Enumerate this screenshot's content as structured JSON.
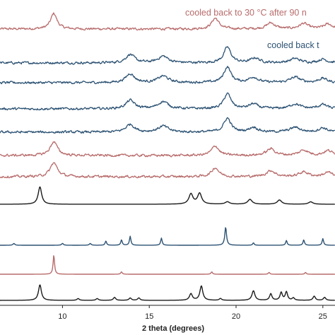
{
  "chart_data": {
    "type": "line",
    "title": "",
    "xlabel": "2 theta (degrees)",
    "ylabel": "",
    "xlim": [
      6.4,
      25.7
    ],
    "xticks": [
      10,
      15,
      20,
      25
    ],
    "xtick_labels": [
      "10",
      "15",
      "20",
      "25"
    ],
    "grid": false,
    "legend": "none",
    "annotations": [
      {
        "text": "cooled back to 30 °C after 90 n",
        "color": "#b86b6b",
        "series_index": 0
      },
      {
        "text": "cooled back t",
        "color": "#2c5273",
        "series_index": 1
      }
    ],
    "series": [
      {
        "color": "#b86b6b",
        "baseline": 0.0,
        "noise": 0.32,
        "peaks": [
          [
            9.5,
            2.6,
            0.22
          ],
          [
            18.8,
            1.8,
            0.25
          ],
          [
            22.0,
            1.0,
            0.3
          ],
          [
            23.9,
            0.9,
            0.3
          ],
          [
            25.3,
            0.8,
            0.3
          ]
        ]
      },
      {
        "color": "#2c5273",
        "baseline": 0.0,
        "noise": 0.32,
        "peaks": [
          [
            13.9,
            1.4,
            0.3
          ],
          [
            15.8,
            1.1,
            0.35
          ],
          [
            19.5,
            2.6,
            0.25
          ],
          [
            21.1,
            0.8,
            0.3
          ],
          [
            23.4,
            0.7,
            0.35
          ],
          [
            25.0,
            0.6,
            0.3
          ]
        ]
      },
      {
        "color": "#2c5273",
        "baseline": 0.0,
        "noise": 0.32,
        "peaks": [
          [
            13.9,
            1.5,
            0.3
          ],
          [
            15.8,
            1.1,
            0.35
          ],
          [
            19.5,
            2.6,
            0.25
          ],
          [
            21.0,
            0.9,
            0.3
          ],
          [
            23.4,
            0.9,
            0.35
          ],
          [
            25.0,
            0.7,
            0.3
          ]
        ]
      },
      {
        "color": "#2c5273",
        "baseline": 0.0,
        "noise": 0.32,
        "peaks": [
          [
            13.9,
            1.4,
            0.3
          ],
          [
            15.8,
            1.2,
            0.35
          ],
          [
            19.5,
            2.5,
            0.25
          ],
          [
            21.0,
            0.8,
            0.3
          ],
          [
            23.4,
            0.8,
            0.35
          ],
          [
            25.0,
            0.7,
            0.3
          ]
        ]
      },
      {
        "color": "#2c5273",
        "baseline": 0.0,
        "noise": 0.32,
        "peaks": [
          [
            13.9,
            1.3,
            0.3
          ],
          [
            15.8,
            1.0,
            0.35
          ],
          [
            19.5,
            2.3,
            0.25
          ],
          [
            21.0,
            0.8,
            0.3
          ],
          [
            23.4,
            0.8,
            0.35
          ],
          [
            25.0,
            0.7,
            0.3
          ]
        ]
      },
      {
        "color": "#b86b6b",
        "baseline": 0.0,
        "noise": 0.32,
        "peaks": [
          [
            9.5,
            2.3,
            0.25
          ],
          [
            18.8,
            1.6,
            0.25
          ],
          [
            22.0,
            1.1,
            0.3
          ],
          [
            23.9,
            0.9,
            0.3
          ],
          [
            25.3,
            0.8,
            0.3
          ]
        ]
      },
      {
        "color": "#b86b6b",
        "baseline": 0.0,
        "noise": 0.32,
        "peaks": [
          [
            9.5,
            2.3,
            0.25
          ],
          [
            18.8,
            1.5,
            0.25
          ],
          [
            22.0,
            1.0,
            0.3
          ],
          [
            23.9,
            0.8,
            0.3
          ],
          [
            25.3,
            0.7,
            0.3
          ]
        ]
      },
      {
        "color": "#1a1a1a",
        "baseline": 0.0,
        "noise": 0.0,
        "peaks": [
          [
            8.7,
            2.9,
            0.12
          ],
          [
            17.4,
            1.7,
            0.14
          ],
          [
            17.9,
            1.8,
            0.14
          ],
          [
            19.5,
            0.4,
            0.15
          ],
          [
            20.8,
            0.8,
            0.15
          ],
          [
            22.5,
            0.7,
            0.15
          ],
          [
            24.3,
            0.4,
            0.15
          ]
        ]
      },
      {
        "color": "#2c5273",
        "baseline": 0.0,
        "noise": 0.0,
        "peaks": [
          [
            7.2,
            0.3,
            0.06
          ],
          [
            10.0,
            0.3,
            0.06
          ],
          [
            11.6,
            0.3,
            0.06
          ],
          [
            12.5,
            0.7,
            0.05
          ],
          [
            13.4,
            0.9,
            0.05
          ],
          [
            13.9,
            1.5,
            0.05
          ],
          [
            15.7,
            1.2,
            0.05
          ],
          [
            19.4,
            3.0,
            0.06
          ],
          [
            21.0,
            0.4,
            0.05
          ],
          [
            22.9,
            0.8,
            0.05
          ],
          [
            23.9,
            0.9,
            0.05
          ],
          [
            25.0,
            1.1,
            0.05
          ]
        ]
      },
      {
        "color": "#b86b6b",
        "baseline": 0.0,
        "noise": 0.0,
        "peaks": [
          [
            9.5,
            3.2,
            0.05
          ],
          [
            13.4,
            0.4,
            0.05
          ],
          [
            18.6,
            0.4,
            0.05
          ],
          [
            21.9,
            0.3,
            0.05
          ],
          [
            24.0,
            0.3,
            0.05
          ]
        ]
      },
      {
        "color": "#1a1a1a",
        "baseline": 0.0,
        "noise": 0.0,
        "peaks": [
          [
            8.7,
            2.6,
            0.1
          ],
          [
            10.9,
            0.3,
            0.08
          ],
          [
            12.0,
            0.3,
            0.08
          ],
          [
            13.0,
            0.5,
            0.08
          ],
          [
            13.9,
            0.4,
            0.08
          ],
          [
            14.4,
            0.4,
            0.08
          ],
          [
            17.4,
            1.1,
            0.1
          ],
          [
            18.0,
            2.4,
            0.1
          ],
          [
            19.1,
            0.3,
            0.08
          ],
          [
            21.0,
            1.6,
            0.1
          ],
          [
            22.0,
            1.1,
            0.08
          ],
          [
            22.6,
            1.3,
            0.08
          ],
          [
            22.9,
            1.4,
            0.08
          ],
          [
            23.3,
            0.4,
            0.08
          ],
          [
            24.5,
            0.7,
            0.08
          ],
          [
            25.1,
            0.5,
            0.08
          ]
        ]
      }
    ]
  }
}
